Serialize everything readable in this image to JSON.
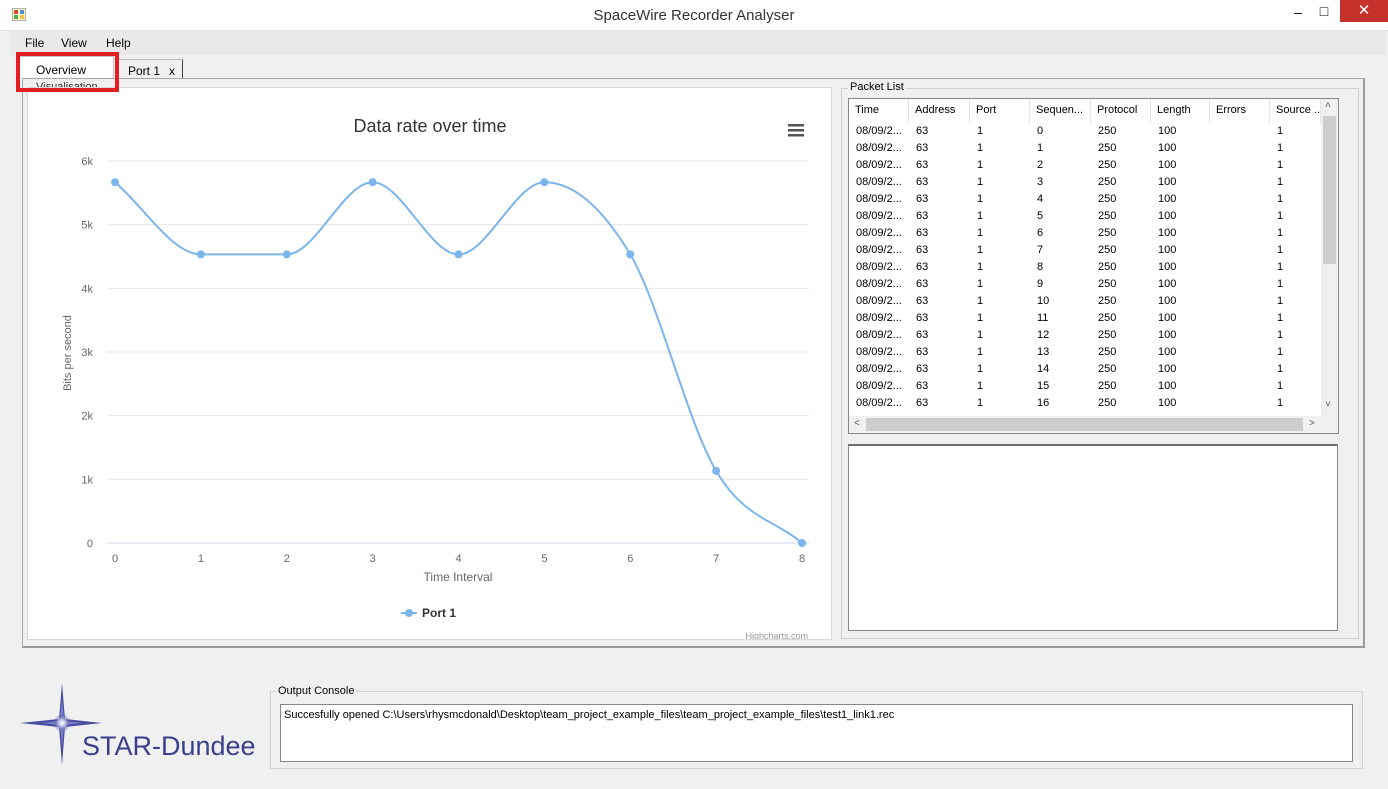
{
  "window": {
    "title": "SpaceWire Recorder Analyser",
    "minimize_glyph": "–",
    "maximize_glyph": "□",
    "close_glyph": "✕"
  },
  "menu": [
    "File",
    "View",
    "Help"
  ],
  "tabs": {
    "overview": "Overview",
    "port1": "Port 1",
    "port1_close": "x"
  },
  "visualisation_label": "Visualisation",
  "chart_data": {
    "type": "line",
    "title": "Data rate over time",
    "xlabel": "Time Interval",
    "ylabel": "Bits per second",
    "categories": [
      "0",
      "1",
      "2",
      "3",
      "4",
      "5",
      "6",
      "7",
      "8"
    ],
    "x": [
      0,
      1,
      2,
      3,
      4,
      5,
      6,
      7,
      8
    ],
    "y_ticks": [
      "0",
      "1k",
      "2k",
      "3k",
      "4k",
      "5k",
      "6k"
    ],
    "ylim": [
      0,
      6000
    ],
    "series": [
      {
        "name": "Port 1",
        "values": [
          5667,
          4533,
          4533,
          5667,
          4533,
          5667,
          4533,
          1133,
          0
        ],
        "color": "#7cb5ec"
      }
    ],
    "credit": "Highcharts.com",
    "grid": true,
    "legend_position": "bottom-center",
    "menu_icon": "hamburger-menu-icon"
  },
  "packet_list": {
    "label": "Packet List",
    "columns": [
      "Time",
      "Address",
      "Port",
      "Sequen...",
      "Protocol",
      "Length",
      "Errors",
      "Source ..."
    ],
    "rows": [
      [
        "08/09/2...",
        "63",
        "1",
        "0",
        "250",
        "100",
        "",
        "1"
      ],
      [
        "08/09/2...",
        "63",
        "1",
        "1",
        "250",
        "100",
        "",
        "1"
      ],
      [
        "08/09/2...",
        "63",
        "1",
        "2",
        "250",
        "100",
        "",
        "1"
      ],
      [
        "08/09/2...",
        "63",
        "1",
        "3",
        "250",
        "100",
        "",
        "1"
      ],
      [
        "08/09/2...",
        "63",
        "1",
        "4",
        "250",
        "100",
        "",
        "1"
      ],
      [
        "08/09/2...",
        "63",
        "1",
        "5",
        "250",
        "100",
        "",
        "1"
      ],
      [
        "08/09/2...",
        "63",
        "1",
        "6",
        "250",
        "100",
        "",
        "1"
      ],
      [
        "08/09/2...",
        "63",
        "1",
        "7",
        "250",
        "100",
        "",
        "1"
      ],
      [
        "08/09/2...",
        "63",
        "1",
        "8",
        "250",
        "100",
        "",
        "1"
      ],
      [
        "08/09/2...",
        "63",
        "1",
        "9",
        "250",
        "100",
        "",
        "1"
      ],
      [
        "08/09/2...",
        "63",
        "1",
        "10",
        "250",
        "100",
        "",
        "1"
      ],
      [
        "08/09/2...",
        "63",
        "1",
        "11",
        "250",
        "100",
        "",
        "1"
      ],
      [
        "08/09/2...",
        "63",
        "1",
        "12",
        "250",
        "100",
        "",
        "1"
      ],
      [
        "08/09/2...",
        "63",
        "1",
        "13",
        "250",
        "100",
        "",
        "1"
      ],
      [
        "08/09/2...",
        "63",
        "1",
        "14",
        "250",
        "100",
        "",
        "1"
      ],
      [
        "08/09/2...",
        "63",
        "1",
        "15",
        "250",
        "100",
        "",
        "1"
      ],
      [
        "08/09/2...",
        "63",
        "1",
        "16",
        "250",
        "100",
        "",
        "1"
      ]
    ]
  },
  "scroll": {
    "up": "˄",
    "down": "˅",
    "left": "<",
    "right": ">"
  },
  "logo": {
    "text": "STAR-Dundee"
  },
  "console": {
    "label": "Output Console",
    "text": "Succesfully opened C:\\Users\\rhysmcdonald\\Desktop\\team_project_example_files\\team_project_example_files\\test1_link1.rec"
  }
}
